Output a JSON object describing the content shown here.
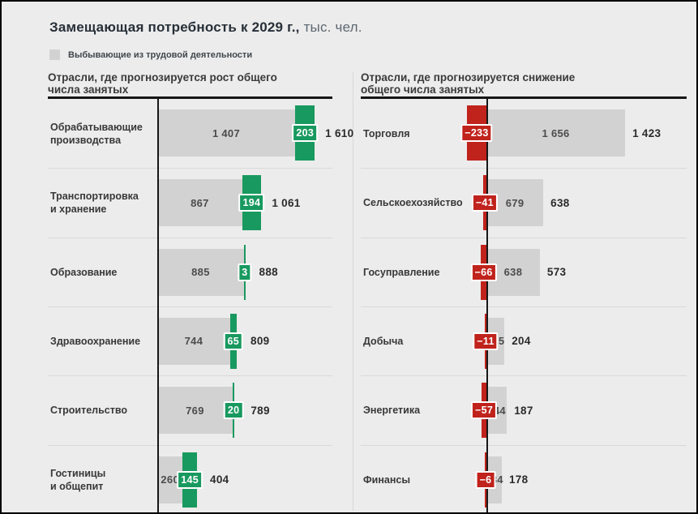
{
  "header": {
    "title_main": "Замещающая потребность к 2029 г.,",
    "title_unit": "тыс. чел."
  },
  "legend": {
    "label": "Выбывающие из трудовой деятельности",
    "swatch_color": "#d2d2d2"
  },
  "colors": {
    "positive_accent": "#18995f",
    "negative_accent": "#c0221c",
    "base_bar": "#d2d2d2",
    "background": "#ececec"
  },
  "chart_data": {
    "type": "bar",
    "orientation": "horizontal-diverging",
    "title": "Замещающая потребность к 2029 г., тыс. чел.",
    "unit": "тыс. чел.",
    "legend": [
      "Выбывающие из трудовой деятельности"
    ],
    "groups": [
      {
        "title": "Отрасли, где прогнозируется рост общего\nчисла занятых",
        "accent_color": "#18995f",
        "rows": [
          {
            "label": "Обрабатывающие\nпроизводства",
            "base": 1407,
            "delta": 203,
            "total": 1610,
            "base_label": "1 407",
            "delta_label": "203",
            "total_label": "1 610"
          },
          {
            "label": "Транспортировка\nи хранение",
            "base": 867,
            "delta": 194,
            "total": 1061,
            "base_label": "867",
            "delta_label": "194",
            "total_label": "1 061"
          },
          {
            "label": "Образование",
            "base": 885,
            "delta": 3,
            "total": 888,
            "base_label": "885",
            "delta_label": "3",
            "total_label": "888"
          },
          {
            "label": "Здравоохранение",
            "base": 744,
            "delta": 65,
            "total": 809,
            "base_label": "744",
            "delta_label": "65",
            "total_label": "809"
          },
          {
            "label": "Строительство",
            "base": 769,
            "delta": 20,
            "total": 789,
            "base_label": "769",
            "delta_label": "20",
            "total_label": "789"
          },
          {
            "label": "Гостиницы\nи общепит",
            "base": 260,
            "delta": 145,
            "total": 404,
            "base_label": "260",
            "delta_label": "145",
            "total_label": "404"
          }
        ]
      },
      {
        "title": "Отрасли, где прогнозируется снижение\nобщего числа занятых",
        "accent_color": "#c0221c",
        "rows": [
          {
            "label": "Торговля",
            "base": 1656,
            "delta": -233,
            "total": 1423,
            "base_label": "1 656",
            "delta_label": "−233",
            "total_label": "1 423"
          },
          {
            "label": "Сельскоехозяйство",
            "base": 679,
            "delta": -41,
            "total": 638,
            "base_label": "679",
            "delta_label": "−41",
            "total_label": "638"
          },
          {
            "label": "Госуправление",
            "base": 638,
            "delta": -66,
            "total": 573,
            "base_label": "638",
            "delta_label": "−66",
            "total_label": "573"
          },
          {
            "label": "Добыча",
            "base": 215,
            "delta": -11,
            "total": 204,
            "base_label": "215",
            "delta_label": "−11",
            "total_label": "204"
          },
          {
            "label": "Энергетика",
            "base": 244,
            "delta": -57,
            "total": 187,
            "base_label": "244",
            "delta_label": "−57",
            "total_label": "187"
          },
          {
            "label": "Финансы",
            "base": 184,
            "delta": -6,
            "total": 178,
            "base_label": "184",
            "delta_label": "−6",
            "total_label": "178"
          }
        ]
      }
    ]
  }
}
